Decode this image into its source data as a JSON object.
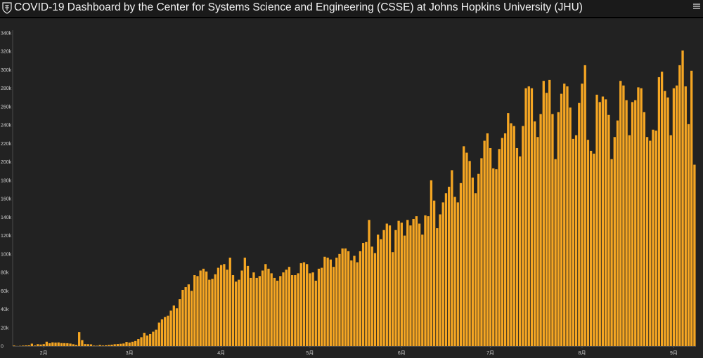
{
  "header": {
    "title": "COVID-19 Dashboard by the Center for Systems Science and Engineering (CSSE) at Johns Hopkins University (JHU)",
    "logo_icon": "jhu-shield-icon",
    "menu_icon": "hamburger-menu-icon"
  },
  "colors": {
    "background": "#222222",
    "header_background": "#1a1a1a",
    "bar": "#f5a623",
    "bar_edge": "#c07d10",
    "axis": "#4a4a4a"
  },
  "chart_data": {
    "type": "bar",
    "title": "",
    "xlabel": "",
    "ylabel": "",
    "ylim": [
      0,
      340000
    ],
    "y_ticks": [
      "0",
      "20k",
      "40k",
      "60k",
      "80k",
      "100k",
      "120k",
      "140k",
      "160k",
      "180k",
      "200k",
      "220k",
      "240k",
      "260k",
      "280k",
      "300k",
      "320k",
      "340k"
    ],
    "x_ticks": [
      "2月",
      "3月",
      "4月",
      "5月",
      "6月",
      "7月",
      "8月",
      "9月"
    ],
    "x_tick_days": [
      10,
      39,
      70,
      100,
      131,
      161,
      192,
      223
    ],
    "grid": false,
    "start_date": "2020-01-22",
    "values": [
      555,
      100,
      287,
      493,
      683,
      809,
      2651,
      589,
      2068,
      1693,
      2111,
      4749,
      3094,
      4011,
      3756,
      3926,
      3248,
      3170,
      3086,
      2721,
      1996,
      1200,
      15152,
      6488,
      2152,
      2032,
      1879,
      500,
      420,
      1145,
      600,
      800,
      1200,
      1500,
      2000,
      2200,
      2500,
      2800,
      4500,
      3800,
      4700,
      5500,
      7600,
      9600,
      14400,
      11500,
      13000,
      15600,
      17800,
      25500,
      29000,
      31500,
      33000,
      38500,
      44000,
      41000,
      51000,
      61000,
      64000,
      67000,
      60000,
      77000,
      76000,
      82000,
      84000,
      81000,
      72000,
      73000,
      78000,
      85000,
      88000,
      89000,
      83000,
      96000,
      77000,
      70000,
      72000,
      82000,
      96000,
      87000,
      74000,
      80000,
      74000,
      76000,
      82000,
      89000,
      84000,
      79000,
      74000,
      71000,
      76000,
      80000,
      83000,
      86000,
      77000,
      77000,
      79000,
      90000,
      91000,
      89000,
      79000,
      80000,
      71000,
      84000,
      85000,
      97000,
      96000,
      94000,
      86000,
      96000,
      100000,
      106000,
      106000,
      103000,
      93000,
      98000,
      91000,
      103000,
      112000,
      113000,
      137000,
      108000,
      101000,
      121000,
      116000,
      126000,
      133000,
      131000,
      102000,
      126000,
      136000,
      134000,
      120000,
      137000,
      131000,
      138000,
      141000,
      133000,
      121000,
      142000,
      141000,
      180000,
      158000,
      128000,
      143000,
      156000,
      166000,
      173000,
      191000,
      162000,
      156000,
      177000,
      217000,
      210000,
      201000,
      183000,
      166000,
      187000,
      204000,
      223000,
      231000,
      215000,
      193000,
      192000,
      214000,
      226000,
      231000,
      253000,
      242000,
      239000,
      215000,
      206000,
      239000,
      280000,
      282000,
      280000,
      244000,
      227000,
      252000,
      288000,
      275000,
      289000,
      252000,
      203000,
      254000,
      274000,
      285000,
      282000,
      259000,
      225000,
      229000,
      264000,
      285000,
      305000,
      224000,
      212000,
      209000,
      273000,
      265000,
      271000,
      268000,
      251000,
      203000,
      227000,
      245000,
      288000,
      283000,
      267000,
      229000,
      265000,
      267000,
      281000,
      280000,
      254000,
      227000,
      223000,
      235000,
      234000,
      292000,
      298000,
      277000,
      270000,
      229000,
      280000,
      283000,
      305000,
      321000,
      282000,
      241000,
      299000,
      197000
    ]
  }
}
